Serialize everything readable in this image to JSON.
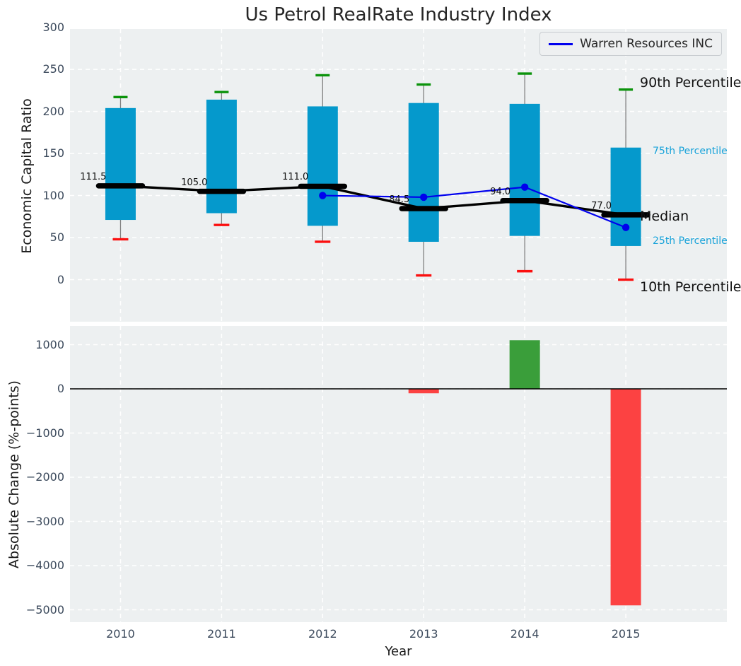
{
  "title": "Us Petrol RealRate Industry Index",
  "legend": {
    "series_label": "Warren Resources INC"
  },
  "colors": {
    "plot_background": "#edf0f1",
    "grid": "#ffffff",
    "box_fill": "#0599cc",
    "whisker": "#7f7f7f",
    "cap_90th": "#0b930b",
    "cap_10th": "#fb0f0f",
    "median_line": "#000000",
    "company_line": "#0000ee",
    "bar_positive": "#3a9e3a",
    "bar_negative": "#fc4242",
    "tick_label": "#3d4b5d",
    "percentile_label": "#17a2d9",
    "text": "#262626"
  },
  "chart_data": [
    {
      "type": "boxplot",
      "title": "Us Petrol RealRate Industry Index",
      "xlabel": "Year",
      "ylabel": "Economic Capital Ratio",
      "categories": [
        "2010",
        "2011",
        "2012",
        "2013",
        "2014",
        "2015"
      ],
      "ylim": [
        -50,
        298
      ],
      "yticks": [
        0,
        50,
        100,
        150,
        200,
        250,
        300
      ],
      "ytick_labels": [
        "0",
        "50",
        "100",
        "150",
        "200",
        "250",
        "300"
      ],
      "grid": true,
      "legend_entries": [
        "Warren Resources INC"
      ],
      "legend_position": "upper right",
      "series": [
        {
          "name": "90th Percentile",
          "values": [
            217,
            223,
            243,
            232,
            245,
            226
          ]
        },
        {
          "name": "75th Percentile",
          "values": [
            204,
            214,
            206,
            210,
            209,
            157
          ]
        },
        {
          "name": "Median",
          "values": [
            111.5,
            105.0,
            111.0,
            84.5,
            94.0,
            77.0
          ]
        },
        {
          "name": "25th Percentile",
          "values": [
            71,
            79,
            64,
            45,
            52,
            40
          ]
        },
        {
          "name": "10th Percentile",
          "values": [
            48,
            65,
            45,
            5,
            10,
            0
          ]
        },
        {
          "name": "Warren Resources INC",
          "x": [
            "2012",
            "2013",
            "2014",
            "2015"
          ],
          "values": [
            100,
            98,
            110,
            62
          ]
        }
      ],
      "median_labels": [
        "111.5",
        "105.0",
        "111.0",
        "84.5",
        "94.0",
        "77.0"
      ],
      "right_annotations": [
        "90th Percentile",
        "75th Percentile",
        "Median",
        "25th Percentile",
        "10th Percentile"
      ]
    },
    {
      "type": "bar",
      "xlabel": "Year",
      "ylabel": "Absolute Change (%-points)",
      "categories": [
        "2010",
        "2011",
        "2012",
        "2013",
        "2014",
        "2015"
      ],
      "values": [
        0,
        0,
        0,
        -100,
        1100,
        -4900
      ],
      "ylim": [
        -5280,
        1424
      ],
      "yticks": [
        1000,
        0,
        -1000,
        -2000,
        -3000,
        -4000,
        -5000
      ],
      "ytick_labels": [
        "1000",
        "0",
        "−1000",
        "−2000",
        "−3000",
        "−4000",
        "−5000"
      ],
      "grid": true,
      "zero_line": true
    }
  ]
}
